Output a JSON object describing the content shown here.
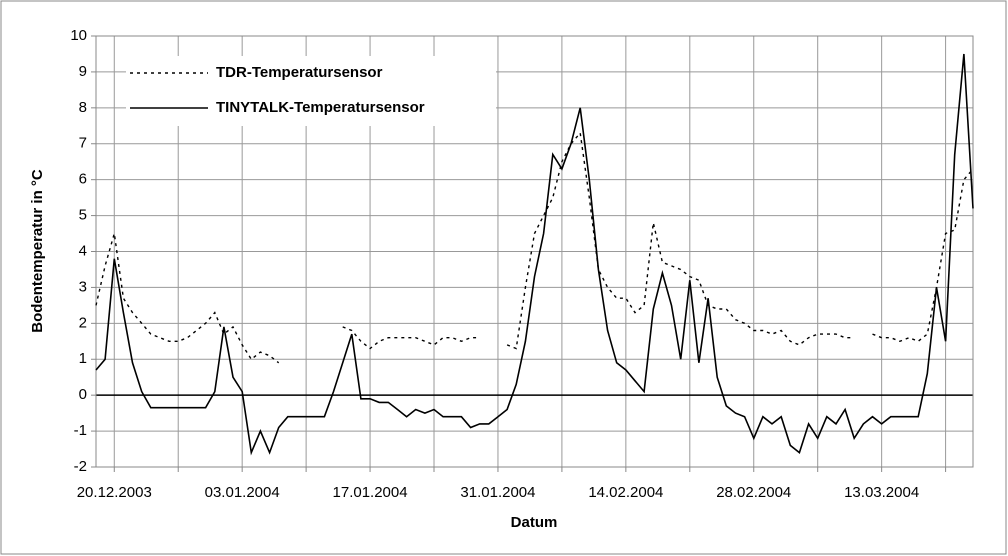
{
  "chart_data": {
    "type": "line",
    "xlabel": "Datum",
    "ylabel": "Bodentemperatur in °C",
    "x": [
      "18.12.2003",
      "19.12.2003",
      "20.12.2003",
      "21.12.2003",
      "22.12.2003",
      "23.12.2003",
      "24.12.2003",
      "25.12.2003",
      "26.12.2003",
      "27.12.2003",
      "28.12.2003",
      "29.12.2003",
      "30.12.2003",
      "31.12.2003",
      "01.01.2004",
      "02.01.2004",
      "03.01.2004",
      "04.01.2004",
      "05.01.2004",
      "06.01.2004",
      "07.01.2004",
      "08.01.2004",
      "09.01.2004",
      "10.01.2004",
      "11.01.2004",
      "12.01.2004",
      "13.01.2004",
      "14.01.2004",
      "15.01.2004",
      "16.01.2004",
      "17.01.2004",
      "18.01.2004",
      "19.01.2004",
      "20.01.2004",
      "21.01.2004",
      "22.01.2004",
      "23.01.2004",
      "24.01.2004",
      "25.01.2004",
      "26.01.2004",
      "27.01.2004",
      "28.01.2004",
      "29.01.2004",
      "30.01.2004",
      "31.01.2004",
      "01.02.2004",
      "02.02.2004",
      "03.02.2004",
      "04.02.2004",
      "05.02.2004",
      "06.02.2004",
      "07.02.2004",
      "08.02.2004",
      "09.02.2004",
      "10.02.2004",
      "11.02.2004",
      "12.02.2004",
      "13.02.2004",
      "14.02.2004",
      "15.02.2004",
      "16.02.2004",
      "17.02.2004",
      "18.02.2004",
      "19.02.2004",
      "20.02.2004",
      "21.02.2004",
      "22.02.2004",
      "23.02.2004",
      "24.02.2004",
      "25.02.2004",
      "26.02.2004",
      "27.02.2004",
      "28.02.2004",
      "29.02.2004",
      "01.03.2004",
      "02.03.2004",
      "03.03.2004",
      "04.03.2004",
      "05.03.2004",
      "06.03.2004",
      "07.03.2004",
      "08.03.2004",
      "09.03.2004",
      "10.03.2004",
      "11.03.2004",
      "12.03.2004",
      "13.03.2004",
      "14.03.2004",
      "15.03.2004",
      "16.03.2004",
      "17.03.2004",
      "18.03.2004",
      "19.03.2004",
      "20.03.2004",
      "21.03.2004",
      "22.03.2004",
      "23.03.2004"
    ],
    "series": [
      {
        "name": "TDR-Temperatursensor",
        "color": "#000000",
        "dash": "dotted",
        "values": [
          2.5,
          3.6,
          4.5,
          2.7,
          2.3,
          2.0,
          1.7,
          1.6,
          1.5,
          1.5,
          1.6,
          1.8,
          2.0,
          2.3,
          1.7,
          1.9,
          1.4,
          1.0,
          1.2,
          1.1,
          0.9,
          null,
          null,
          null,
          null,
          null,
          null,
          1.9,
          1.8,
          1.5,
          1.3,
          1.5,
          1.6,
          1.6,
          1.6,
          1.6,
          1.5,
          1.4,
          1.6,
          1.6,
          1.5,
          1.6,
          1.6,
          null,
          null,
          1.4,
          1.3,
          3.0,
          4.5,
          5.0,
          5.5,
          6.5,
          7.0,
          7.3,
          5.5,
          3.5,
          3.0,
          2.7,
          2.7,
          2.3,
          2.5,
          4.8,
          3.7,
          3.6,
          3.5,
          3.3,
          3.2,
          2.5,
          2.4,
          2.4,
          2.1,
          2.0,
          1.8,
          1.8,
          1.7,
          1.8,
          1.5,
          1.4,
          1.6,
          1.7,
          1.7,
          1.7,
          1.6,
          1.6,
          null,
          1.7,
          1.6,
          1.6,
          1.5,
          1.6,
          1.5,
          1.7,
          3.0,
          4.5,
          4.6,
          6.0,
          6.3
        ]
      },
      {
        "name": "TINYTALK-Temperatursensor",
        "color": "#000000",
        "dash": "solid",
        "values": [
          0.7,
          1.0,
          3.8,
          2.3,
          0.9,
          0.1,
          -0.35,
          -0.35,
          -0.35,
          -0.35,
          -0.35,
          -0.35,
          -0.35,
          0.1,
          1.9,
          0.5,
          0.1,
          -1.6,
          -1.0,
          -1.6,
          -0.9,
          -0.6,
          -0.6,
          -0.6,
          -0.6,
          -0.6,
          0.1,
          0.9,
          1.7,
          -0.1,
          -0.1,
          -0.2,
          -0.2,
          -0.4,
          -0.6,
          -0.4,
          -0.5,
          -0.4,
          -0.6,
          -0.6,
          -0.6,
          -0.9,
          -0.8,
          -0.8,
          -0.6,
          -0.4,
          0.3,
          1.5,
          3.3,
          4.5,
          6.7,
          6.3,
          7.0,
          8.0,
          6.0,
          3.5,
          1.8,
          0.9,
          0.7,
          0.4,
          0.1,
          2.4,
          3.4,
          2.5,
          1.0,
          3.2,
          0.9,
          2.7,
          0.5,
          -0.3,
          -0.5,
          -0.6,
          -1.2,
          -0.6,
          -0.8,
          -0.6,
          -1.4,
          -1.6,
          -0.8,
          -1.2,
          -0.6,
          -0.8,
          -0.4,
          -1.2,
          -0.8,
          -0.6,
          -0.8,
          -0.6,
          -0.6,
          -0.6,
          -0.6,
          0.6,
          3.0,
          1.5,
          6.7,
          9.5,
          5.2
        ]
      }
    ],
    "xlim": [
      "18.12.2003",
      "23.03.2004"
    ],
    "xticks": [
      "20.12.2003",
      "03.01.2004",
      "17.01.2004",
      "31.01.2004",
      "14.02.2004",
      "28.02.2004",
      "13.03.2004"
    ],
    "xminor": [
      "27.12.2003",
      "10.01.2004",
      "24.01.2004",
      "07.02.2004",
      "21.02.2004",
      "06.03.2004",
      "20.03.2004"
    ],
    "ylim": [
      -2,
      10
    ],
    "yticks": [
      -2,
      -1,
      0,
      1,
      2,
      3,
      4,
      5,
      6,
      7,
      8,
      9,
      10
    ],
    "grid": true,
    "legend": "upper left"
  }
}
